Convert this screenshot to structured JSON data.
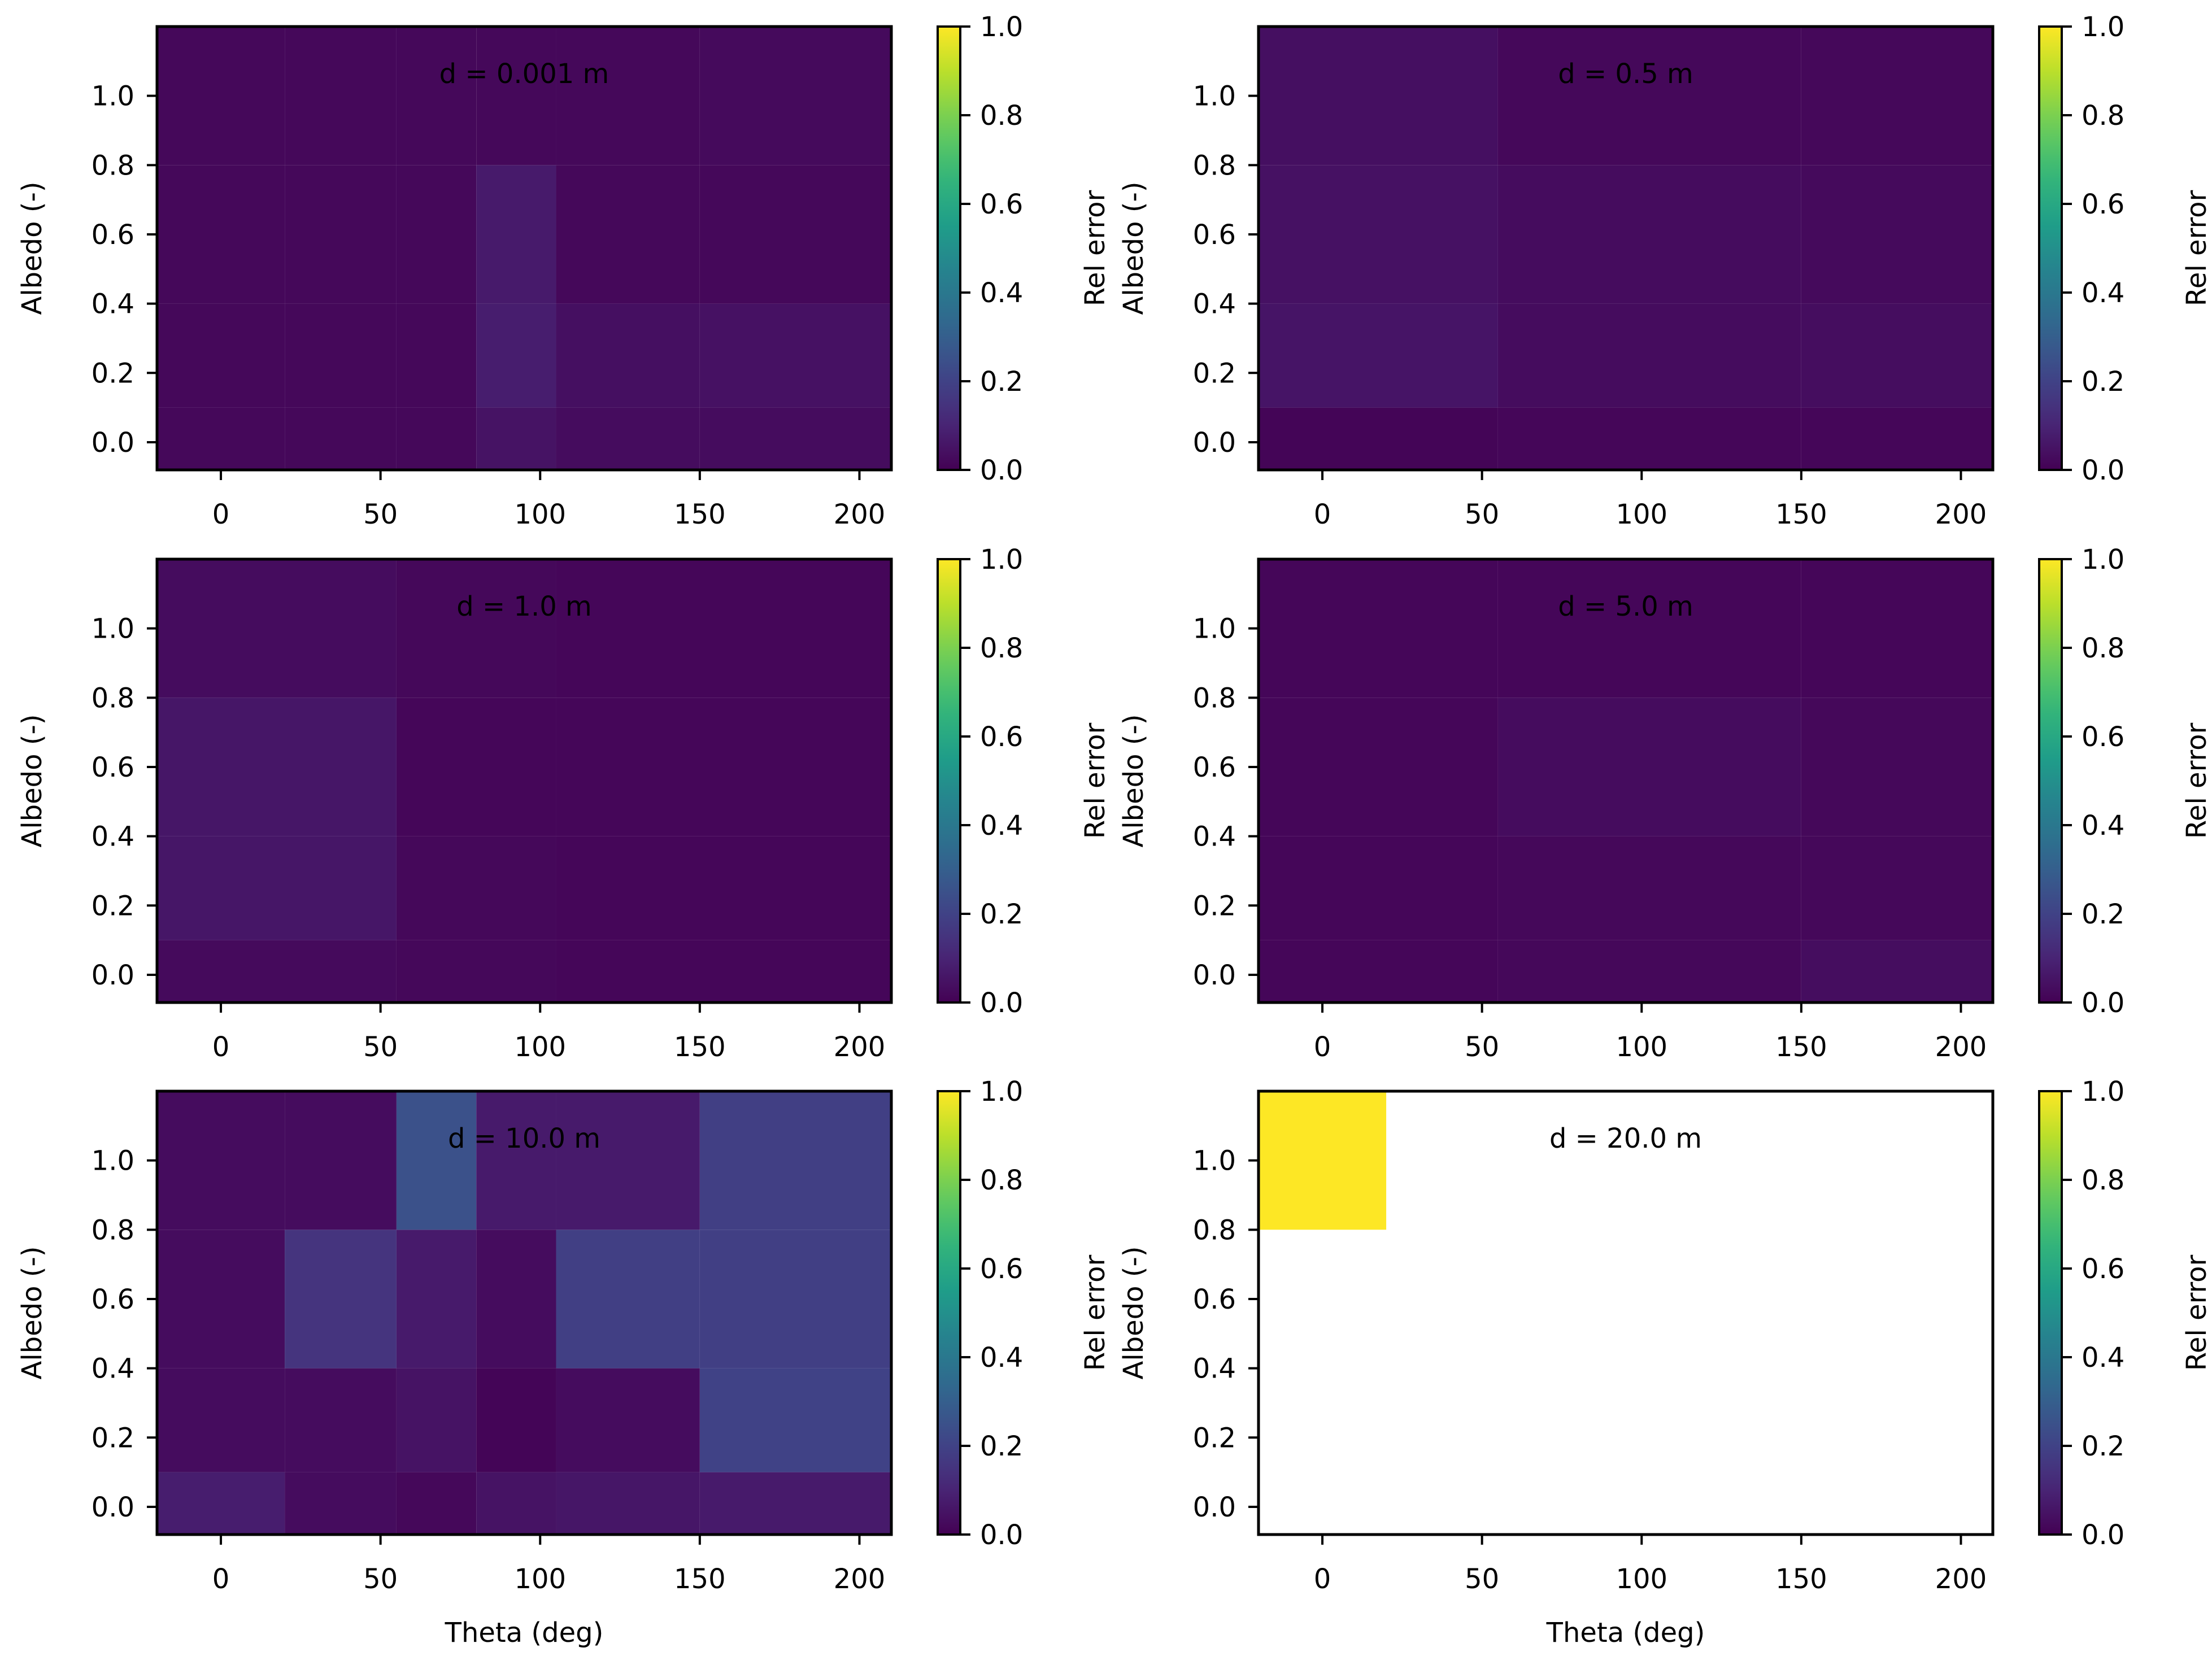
{
  "chart_data": [
    {
      "type": "heatmap",
      "title": "d = 0.001 m",
      "xlabel": "",
      "ylabel": "Albedo (-)",
      "colorbar_label": "Rel error",
      "colorbar_ticks": [
        "0.0",
        "0.2",
        "0.4",
        "0.6",
        "0.8",
        "1.0"
      ],
      "x_ticks": [
        "0",
        "50",
        "100",
        "150",
        "200"
      ],
      "y_ticks": [
        "0.0",
        "0.2",
        "0.4",
        "0.6",
        "0.8",
        "1.0"
      ],
      "xlim": [
        -20,
        210
      ],
      "ylim": [
        -0.08,
        1.2
      ],
      "x_edges": [
        -20,
        20,
        55,
        80,
        105,
        150,
        210
      ],
      "y_edges": [
        -0.08,
        0.1,
        0.4,
        0.8,
        1.2
      ],
      "values": [
        [
          0.02,
          0.02,
          0.02,
          0.05,
          0.03,
          0.03
        ],
        [
          0.02,
          0.02,
          0.02,
          0.08,
          0.04,
          0.045
        ],
        [
          0.02,
          0.02,
          0.02,
          0.07,
          0.02,
          0.02
        ],
        [
          0.02,
          0.02,
          0.02,
          0.02,
          0.02,
          0.025
        ]
      ]
    },
    {
      "type": "heatmap",
      "title": "d = 0.5 m",
      "xlabel": "",
      "ylabel": "Albedo (-)",
      "colorbar_label": "Rel error",
      "colorbar_ticks": [
        "0.0",
        "0.2",
        "0.4",
        "0.6",
        "0.8",
        "1.0"
      ],
      "x_ticks": [
        "0",
        "50",
        "100",
        "150",
        "200"
      ],
      "y_ticks": [
        "0.0",
        "0.2",
        "0.4",
        "0.6",
        "0.8",
        "1.0"
      ],
      "xlim": [
        -20,
        210
      ],
      "ylim": [
        -0.08,
        1.2
      ],
      "x_edges": [
        -20,
        55,
        150,
        210
      ],
      "y_edges": [
        -0.08,
        0.1,
        0.4,
        0.8,
        1.2
      ],
      "values": [
        [
          0.01,
          0.015,
          0.015
        ],
        [
          0.055,
          0.03,
          0.035
        ],
        [
          0.045,
          0.03,
          0.025
        ],
        [
          0.04,
          0.02,
          0.02
        ]
      ]
    },
    {
      "type": "heatmap",
      "title": "d = 1.0 m",
      "xlabel": "",
      "ylabel": "Albedo (-)",
      "colorbar_label": "Rel error",
      "colorbar_ticks": [
        "0.0",
        "0.2",
        "0.4",
        "0.6",
        "0.8",
        "1.0"
      ],
      "x_ticks": [
        "0",
        "50",
        "100",
        "150",
        "200"
      ],
      "y_ticks": [
        "0.0",
        "0.2",
        "0.4",
        "0.6",
        "0.8",
        "1.0"
      ],
      "xlim": [
        -20,
        210
      ],
      "ylim": [
        -0.08,
        1.2
      ],
      "x_edges": [
        -20,
        55,
        105,
        210
      ],
      "y_edges": [
        -0.08,
        0.1,
        0.4,
        0.8,
        1.2
      ],
      "values": [
        [
          0.025,
          0.02,
          0.015
        ],
        [
          0.06,
          0.02,
          0.015
        ],
        [
          0.06,
          0.015,
          0.015
        ],
        [
          0.03,
          0.02,
          0.015
        ]
      ]
    },
    {
      "type": "heatmap",
      "title": "d = 5.0 m",
      "xlabel": "",
      "ylabel": "Albedo (-)",
      "colorbar_label": "Rel error",
      "colorbar_ticks": [
        "0.0",
        "0.2",
        "0.4",
        "0.6",
        "0.8",
        "1.0"
      ],
      "x_ticks": [
        "0",
        "50",
        "100",
        "150",
        "200"
      ],
      "y_ticks": [
        "0.0",
        "0.2",
        "0.4",
        "0.6",
        "0.8",
        "1.0"
      ],
      "xlim": [
        -20,
        210
      ],
      "ylim": [
        -0.08,
        1.2
      ],
      "x_edges": [
        -20,
        55,
        150,
        210
      ],
      "y_edges": [
        -0.08,
        0.1,
        0.4,
        0.8,
        1.2
      ],
      "values": [
        [
          0.015,
          0.02,
          0.035
        ],
        [
          0.015,
          0.02,
          0.02
        ],
        [
          0.015,
          0.03,
          0.02
        ],
        [
          0.015,
          0.015,
          0.015
        ]
      ]
    },
    {
      "type": "heatmap",
      "title": "d = 10.0 m",
      "xlabel": "Theta (deg)",
      "ylabel": "Albedo (-)",
      "colorbar_label": "Rel error",
      "colorbar_ticks": [
        "0.0",
        "0.2",
        "0.4",
        "0.6",
        "0.8",
        "1.0"
      ],
      "x_ticks": [
        "0",
        "50",
        "100",
        "150",
        "200"
      ],
      "y_ticks": [
        "0.0",
        "0.2",
        "0.4",
        "0.6",
        "0.8",
        "1.0"
      ],
      "xlim": [
        -20,
        210
      ],
      "ylim": [
        -0.08,
        1.2
      ],
      "x_edges": [
        -20,
        20,
        55,
        80,
        105,
        150,
        210
      ],
      "y_edges": [
        -0.08,
        0.1,
        0.4,
        0.8,
        1.2
      ],
      "values": [
        [
          0.08,
          0.03,
          0.02,
          0.05,
          0.06,
          0.07
        ],
        [
          0.03,
          0.03,
          0.05,
          0.01,
          0.03,
          0.2
        ],
        [
          0.03,
          0.15,
          0.07,
          0.03,
          0.19,
          0.19
        ],
        [
          0.03,
          0.03,
          0.25,
          0.07,
          0.07,
          0.19
        ]
      ]
    },
    {
      "type": "heatmap",
      "title": "d = 20.0 m",
      "xlabel": "Theta (deg)",
      "ylabel": "Albedo (-)",
      "colorbar_label": "Rel error",
      "colorbar_ticks": [
        "0.0",
        "0.2",
        "0.4",
        "0.6",
        "0.8",
        "1.0"
      ],
      "x_ticks": [
        "0",
        "50",
        "100",
        "150",
        "200"
      ],
      "y_ticks": [
        "0.0",
        "0.2",
        "0.4",
        "0.6",
        "0.8",
        "1.0"
      ],
      "xlim": [
        -20,
        210
      ],
      "ylim": [
        -0.08,
        1.2
      ],
      "x_edges": [
        -20,
        20,
        210
      ],
      "y_edges": [
        -0.08,
        0.8,
        1.2
      ],
      "values": [
        [
          null,
          null
        ],
        [
          1.0,
          null
        ]
      ]
    }
  ]
}
